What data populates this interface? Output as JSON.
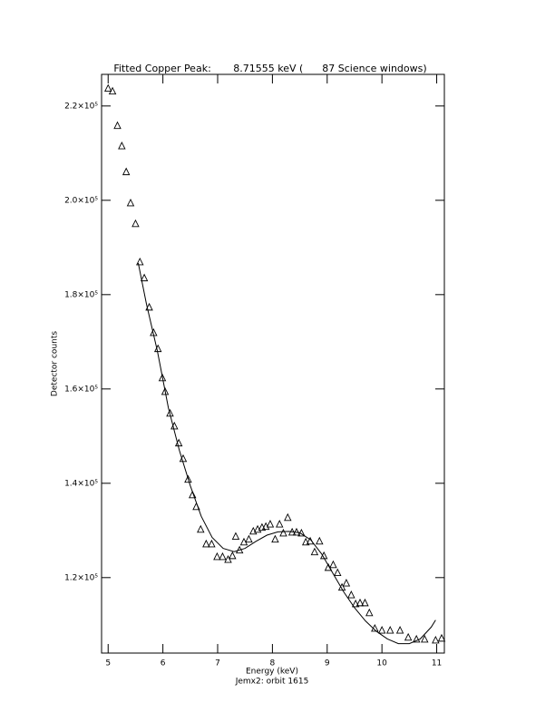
{
  "chart_data": {
    "type": "scatter",
    "title": "Fitted Copper Peak:       8.71555 keV (      87 Science windows)",
    "x_label": "Energy (keV)",
    "y_label": "Detector counts",
    "subtitle": "Jemx2: orbit 1615",
    "xlim": [
      4.88,
      11.14
    ],
    "ylim": [
      104000,
      226700
    ],
    "xticks": [
      5,
      6,
      7,
      8,
      9,
      10,
      11
    ],
    "yticks": [
      {
        "value": 120000,
        "label": "1.2×10⁵"
      },
      {
        "value": 140000,
        "label": "1.4×10⁵"
      },
      {
        "value": 160000,
        "label": "1.6×10⁵"
      },
      {
        "value": 180000,
        "label": "1.8×10⁵"
      },
      {
        "value": 200000,
        "label": "2.0×10⁵"
      },
      {
        "value": 220000,
        "label": "2.2×10⁵"
      }
    ],
    "series": [
      {
        "marker": "triangle",
        "color": "#000000",
        "x": [
          5.0,
          5.08,
          5.17,
          5.25,
          5.33,
          5.41,
          5.5,
          5.58,
          5.66,
          5.75,
          5.83,
          5.91,
          5.99,
          6.04,
          6.13,
          6.21,
          6.29,
          6.37,
          6.46,
          6.54,
          6.61,
          6.69,
          6.79,
          6.89,
          6.99,
          7.09,
          7.19,
          7.27,
          7.33,
          7.4,
          7.48,
          7.57,
          7.65,
          7.73,
          7.81,
          7.88,
          7.96,
          8.05,
          8.13,
          8.2,
          8.28,
          8.36,
          8.44,
          8.53,
          8.61,
          8.69,
          8.77,
          8.86,
          8.94,
          9.02,
          9.11,
          9.19,
          9.27,
          9.35,
          9.44,
          9.52,
          9.6,
          9.69,
          9.77,
          9.87,
          10.0,
          10.15,
          10.33,
          10.48,
          10.63,
          10.78,
          10.98,
          11.09
        ],
        "values": [
          223700,
          223100,
          215800,
          211500,
          206000,
          199400,
          195000,
          186900,
          183500,
          177300,
          171900,
          168500,
          162300,
          159400,
          154800,
          152100,
          148500,
          145200,
          140800,
          137500,
          135000,
          130200,
          127100,
          127100,
          124400,
          124400,
          123800,
          124600,
          128700,
          125800,
          127500,
          128100,
          129800,
          130200,
          130600,
          130800,
          131300,
          128100,
          131300,
          129400,
          132700,
          129600,
          129600,
          129400,
          127500,
          127700,
          125400,
          127700,
          124600,
          122100,
          122700,
          121000,
          117900,
          118800,
          116300,
          114400,
          114600,
          114600,
          112500,
          109200,
          108800,
          108800,
          108800,
          107300,
          106900,
          106900,
          106700,
          107100
        ]
      },
      {
        "marker": "line",
        "color": "#000000",
        "x": [
          5.55,
          5.7,
          5.9,
          6.1,
          6.3,
          6.5,
          6.7,
          6.9,
          7.1,
          7.3,
          7.5,
          7.7,
          7.9,
          8.1,
          8.3,
          8.5,
          8.7,
          8.9,
          9.1,
          9.3,
          9.5,
          9.7,
          9.9,
          10.1,
          10.3,
          10.5,
          10.7,
          10.9,
          10.98
        ],
        "values": [
          186700,
          178000,
          168000,
          156000,
          147000,
          139500,
          133000,
          128500,
          126200,
          125500,
          126200,
          127700,
          129000,
          129700,
          129800,
          129500,
          128000,
          125000,
          121000,
          117000,
          113600,
          110800,
          108600,
          107000,
          106000,
          106000,
          107000,
          109500,
          111000
        ]
      }
    ]
  }
}
